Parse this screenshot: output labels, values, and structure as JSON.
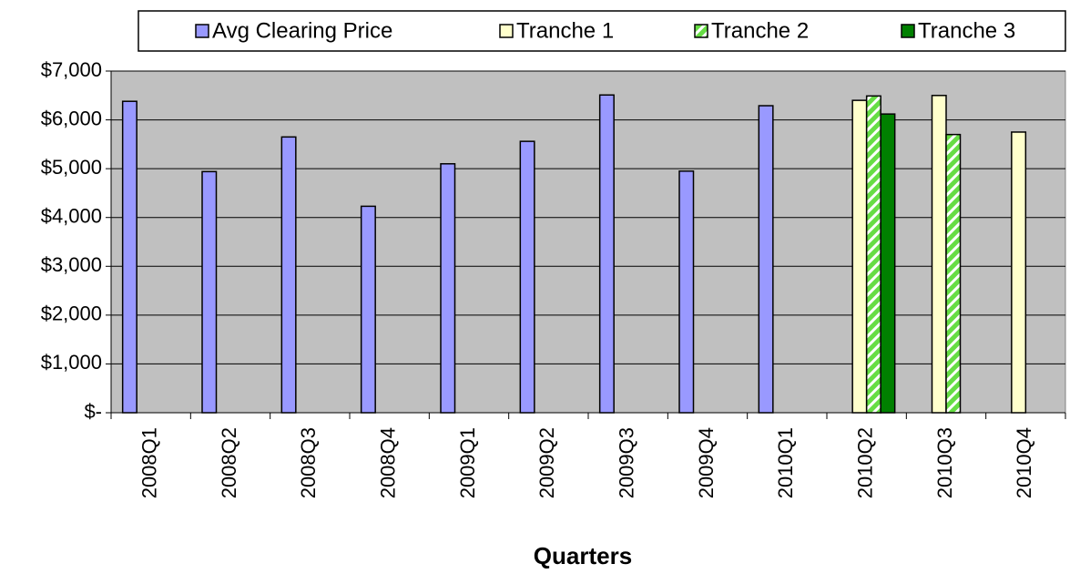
{
  "chart_data": {
    "type": "bar",
    "x_label": "Quarters",
    "categories": [
      "2008Q1",
      "2008Q2",
      "2008Q3",
      "2008Q4",
      "2009Q1",
      "2009Q2",
      "2009Q3",
      "2009Q4",
      "2010Q1",
      "2010Q2",
      "2010Q3",
      "2010Q4"
    ],
    "series": [
      {
        "name": "Avg Clearing Price",
        "color": "#9999ff",
        "values": [
          6380,
          4940,
          5650,
          4230,
          5100,
          5560,
          6510,
          4950,
          6290,
          null,
          null,
          null
        ]
      },
      {
        "name": "Tranche 1",
        "color": "#ffffcc",
        "values": [
          null,
          null,
          null,
          null,
          null,
          null,
          null,
          null,
          null,
          6400,
          6500,
          5750
        ]
      },
      {
        "name": "Tranche 2",
        "color": "#66dd44",
        "pattern": "diagonal",
        "values": [
          null,
          null,
          null,
          null,
          null,
          null,
          null,
          null,
          null,
          6490,
          5700,
          null
        ]
      },
      {
        "name": "Tranche 3",
        "color": "#008000",
        "values": [
          null,
          null,
          null,
          null,
          null,
          null,
          null,
          null,
          null,
          6120,
          null,
          null
        ]
      }
    ],
    "ylim": [
      0,
      7000
    ],
    "yticks": [
      {
        "value": 0,
        "label": "$-"
      },
      {
        "value": 1000,
        "label": "$1,000"
      },
      {
        "value": 2000,
        "label": "$2,000"
      },
      {
        "value": 3000,
        "label": "$3,000"
      },
      {
        "value": 4000,
        "label": "$4,000"
      },
      {
        "value": 5000,
        "label": "$5,000"
      },
      {
        "value": 6000,
        "label": "$6,000"
      },
      {
        "value": 7000,
        "label": "$7,000"
      }
    ],
    "grid": true,
    "legend": "top"
  }
}
